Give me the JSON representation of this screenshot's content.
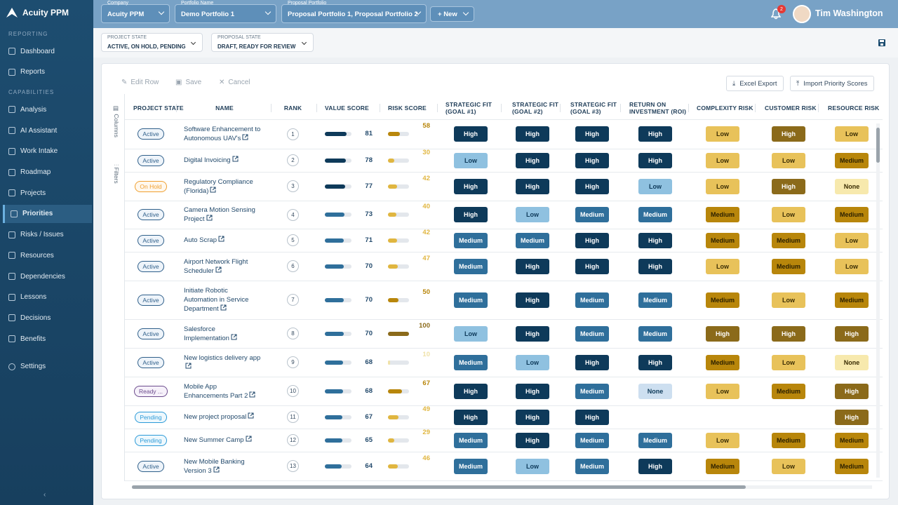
{
  "sidebar": {
    "brand": "Acuity PPM",
    "sections": [
      {
        "title": "REPORTING",
        "items": [
          "Dashboard",
          "Reports"
        ]
      },
      {
        "title": "CAPABILITIES",
        "items": [
          "Analysis",
          "AI Assistant",
          "Work Intake",
          "Roadmap",
          "Projects",
          "Priorities",
          "Risks / Issues",
          "Resources",
          "Dependencies",
          "Lessons",
          "Decisions",
          "Benefits"
        ]
      }
    ],
    "footer_item": "Settings",
    "active": "Priorities"
  },
  "header": {
    "company_label": "Company",
    "company": "Acuity PPM",
    "portfolio_label": "Portfolio Name",
    "portfolio": "Demo Portfolio 1",
    "proposal_label": "Proposal Portfolio",
    "proposal": "Proposal Portfolio 1, Proposal Portfolio 2",
    "new_button": "New",
    "notifications": 2,
    "user": "Tim Washington"
  },
  "filters": [
    {
      "label": "PROJECT STATE",
      "value": "ACTIVE, ON HOLD, PENDING"
    },
    {
      "label": "PROPOSAL STATE",
      "value": "DRAFT, READY FOR REVIEW"
    }
  ],
  "toolbar": {
    "edit": "Edit Row",
    "save": "Save",
    "cancel": "Cancel",
    "export": "Excel Export",
    "import": "Import Priority Scores"
  },
  "side_tabs": [
    "Columns",
    "Filters"
  ],
  "table": {
    "columns": [
      "PROJECT STATE",
      "NAME",
      "RANK",
      "VALUE SCORE",
      "RISK SCORE",
      "STRATEGIC FIT (GOAL #1)",
      "STRATEGIC FIT (GOAL #2)",
      "STRATEGIC FIT (GOAL #3)",
      "RETURN ON INVESTMENT (ROI)",
      "COMPLEXITY RISK",
      "CUSTOMER RISK",
      "RESOURCE RISK"
    ],
    "rows": [
      [
        "Active",
        "Software Enhancement to Autonomous UAV's",
        1,
        81,
        58,
        "High",
        "High",
        "High",
        "High",
        "Low",
        "High",
        "Low"
      ],
      [
        "Active",
        "Digital Invoicing",
        2,
        78,
        30,
        "Low",
        "High",
        "High",
        "High",
        "Low",
        "Low",
        "Medium"
      ],
      [
        "On Hold",
        "Regulatory Compliance (Florida)",
        3,
        77,
        42,
        "High",
        "High",
        "High",
        "Low",
        "Low",
        "High",
        "None"
      ],
      [
        "Active",
        "Camera Motion Sensing Project",
        4,
        73,
        40,
        "High",
        "Low",
        "Medium",
        "Medium",
        "Medium",
        "Low",
        "Medium"
      ],
      [
        "Active",
        "Auto Scrap",
        5,
        71,
        42,
        "Medium",
        "Medium",
        "High",
        "High",
        "Medium",
        "Medium",
        "Low"
      ],
      [
        "Active",
        "Airport Network Flight Scheduler",
        6,
        70,
        47,
        "Medium",
        "High",
        "High",
        "High",
        "Low",
        "Medium",
        "Low"
      ],
      [
        "Active",
        "Initiate Robotic Automation in Service Department",
        7,
        70,
        50,
        "Medium",
        "High",
        "Medium",
        "Medium",
        "Medium",
        "Low",
        "Medium"
      ],
      [
        "Active",
        "Salesforce Implementation",
        8,
        70,
        100,
        "Low",
        "High",
        "Medium",
        "Medium",
        "High",
        "High",
        "High"
      ],
      [
        "Active",
        "New logistics delivery app",
        9,
        68,
        10,
        "Medium",
        "Low",
        "High",
        "High",
        "Medium",
        "Low",
        "None"
      ],
      [
        "Ready ...",
        "Mobile App Enhancements Part 2",
        10,
        68,
        67,
        "High",
        "High",
        "Medium",
        "None",
        "Low",
        "Medium",
        "High"
      ],
      [
        "Pending",
        "New project proposal",
        11,
        67,
        49,
        "High",
        "High",
        "High",
        null,
        null,
        null,
        "High"
      ],
      [
        "Pending",
        "New Summer Camp",
        12,
        65,
        29,
        "Medium",
        "High",
        "Medium",
        "Medium",
        "Low",
        "Medium",
        "Medium"
      ],
      [
        "Active",
        "New Mobile Banking Version 3",
        13,
        64,
        46,
        "Medium",
        "Low",
        "Medium",
        "High",
        "Medium",
        "Low",
        "Medium"
      ]
    ]
  }
}
